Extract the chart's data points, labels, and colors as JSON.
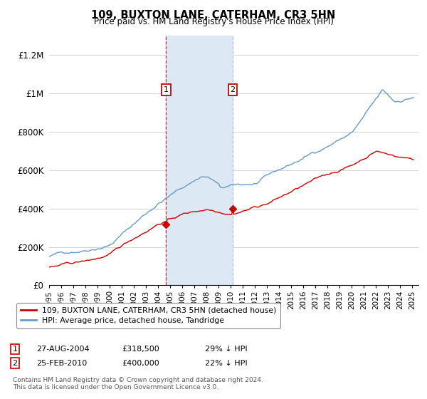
{
  "title": "109, BUXTON LANE, CATERHAM, CR3 5HN",
  "subtitle": "Price paid vs. HM Land Registry's House Price Index (HPI)",
  "ylim": [
    0,
    1300000
  ],
  "yticks": [
    0,
    200000,
    400000,
    600000,
    800000,
    1000000,
    1200000
  ],
  "ytick_labels": [
    "£0",
    "£200K",
    "£400K",
    "£600K",
    "£800K",
    "£1M",
    "£1.2M"
  ],
  "sale1_year": 2004.65,
  "sale1_price": 318500,
  "sale2_year": 2010.15,
  "sale2_price": 400000,
  "property_color": "#cc0000",
  "hpi_color": "#6699cc",
  "legend_property": "109, BUXTON LANE, CATERHAM, CR3 5HN (detached house)",
  "legend_hpi": "HPI: Average price, detached house, Tandridge",
  "footnote1": "Contains HM Land Registry data © Crown copyright and database right 2024.",
  "footnote2": "This data is licensed under the Open Government Licence v3.0.",
  "shade_color": "#dce9f5",
  "vline1_color": "#cc0000",
  "vline2_color": "#aabbcc",
  "background_color": "#ffffff",
  "grid_color": "#cccccc",
  "sale1_date_str": "27-AUG-2004",
  "sale1_price_str": "£318,500",
  "sale1_pct_str": "29% ↓ HPI",
  "sale2_date_str": "25-FEB-2010",
  "sale2_price_str": "£400,000",
  "sale2_pct_str": "22% ↓ HPI"
}
